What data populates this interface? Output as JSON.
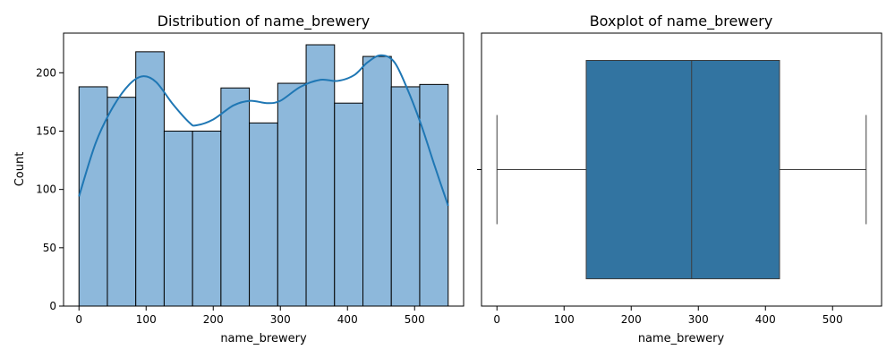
{
  "chart_data": [
    {
      "type": "bar",
      "subtype": "histogram-with-kde",
      "title": "Distribution of name_brewery",
      "xlabel": "name_brewery",
      "ylabel": "Count",
      "xlim": [
        -23,
        573
      ],
      "ylim": [
        0,
        234
      ],
      "xticks": [
        0,
        100,
        200,
        300,
        400,
        500
      ],
      "yticks": [
        0,
        50,
        100,
        150,
        200
      ],
      "bin_edges": [
        0,
        42.3,
        84.6,
        126.9,
        169.2,
        211.5,
        253.8,
        296.1,
        338.4,
        380.7,
        423.0,
        465.3,
        507.6,
        550
      ],
      "values": [
        188,
        179,
        218,
        150,
        150,
        187,
        157,
        191,
        224,
        174,
        214,
        188,
        190
      ],
      "kde": {
        "x": [
          0,
          25,
          50,
          75,
          95,
          115,
          140,
          165,
          175,
          200,
          230,
          255,
          280,
          300,
          330,
          360,
          385,
          410,
          430,
          450,
          470,
          490,
          510,
          530,
          550
        ],
        "y": [
          94,
          140,
          170,
          190,
          197,
          192,
          173,
          157,
          155,
          160,
          172,
          176,
          174,
          176,
          188,
          194,
          193,
          198,
          209,
          215,
          209,
          185,
          155,
          120,
          86
        ]
      },
      "bar_color": "#8DB8DB",
      "line_color": "#1F77B4",
      "grid": false
    },
    {
      "type": "box",
      "title": "Boxplot of name_brewery",
      "xlabel": "name_brewery",
      "ylabel": "",
      "xlim": [
        -23,
        573
      ],
      "xticks": [
        0,
        100,
        200,
        300,
        400,
        500
      ],
      "min": 0,
      "q1": 133,
      "median": 290,
      "q3": 421,
      "max": 550,
      "box_color": "#3274A1",
      "grid": false
    }
  ]
}
